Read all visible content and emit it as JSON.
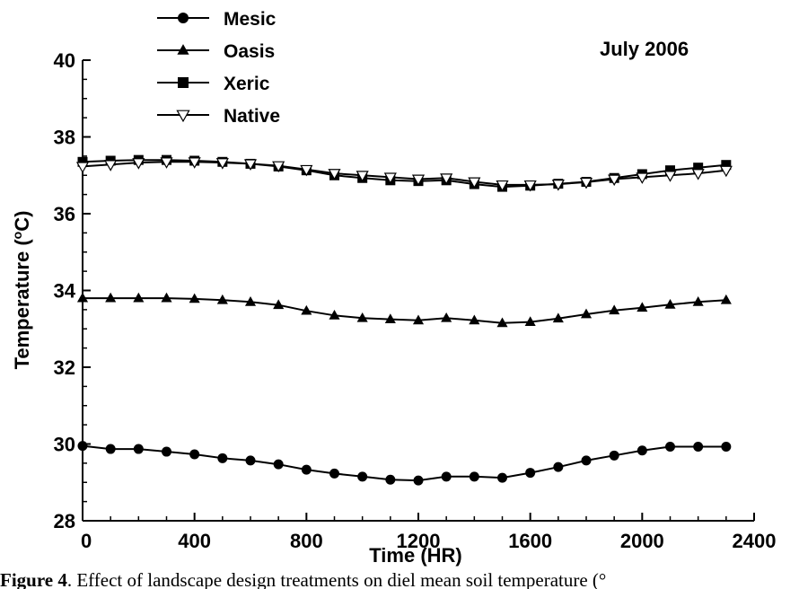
{
  "chart_data": {
    "type": "line",
    "annotation": "July 2006",
    "xlabel": "Time (HR)",
    "ylabel": "Temperature (°C)",
    "ylabel_parts": {
      "pre": "Temperature (",
      "sup": "o",
      "post": "C)"
    },
    "xlim": [
      0,
      2400
    ],
    "ylim": [
      28,
      40
    ],
    "xticks": [
      0,
      400,
      800,
      1200,
      1600,
      2000,
      2400
    ],
    "yticks": [
      28,
      30,
      32,
      34,
      36,
      38,
      40
    ],
    "grid": false,
    "legend_position": "top-left",
    "x": [
      0,
      100,
      200,
      300,
      400,
      500,
      600,
      700,
      800,
      900,
      1000,
      1100,
      1200,
      1300,
      1400,
      1500,
      1600,
      1700,
      1800,
      1900,
      2000,
      2100,
      2200,
      2300
    ],
    "series": [
      {
        "name": "Mesic",
        "marker": "circle",
        "values": [
          29.95,
          29.87,
          29.87,
          29.8,
          29.73,
          29.63,
          29.57,
          29.47,
          29.33,
          29.23,
          29.15,
          29.07,
          29.05,
          29.15,
          29.15,
          29.12,
          29.25,
          29.4,
          29.57,
          29.7,
          29.83,
          29.93,
          29.93,
          29.93
        ]
      },
      {
        "name": "Oasis",
        "marker": "triangle",
        "values": [
          33.8,
          33.8,
          33.8,
          33.8,
          33.78,
          33.75,
          33.7,
          33.62,
          33.47,
          33.35,
          33.28,
          33.25,
          33.22,
          33.28,
          33.22,
          33.15,
          33.18,
          33.27,
          33.38,
          33.48,
          33.55,
          33.63,
          33.7,
          33.75
        ]
      },
      {
        "name": "Xeric",
        "marker": "square",
        "values": [
          37.35,
          37.38,
          37.4,
          37.4,
          37.38,
          37.35,
          37.3,
          37.23,
          37.13,
          37.0,
          36.93,
          36.87,
          36.85,
          36.87,
          36.77,
          36.7,
          36.73,
          36.78,
          36.83,
          36.93,
          37.03,
          37.13,
          37.2,
          37.27
        ]
      },
      {
        "name": "Native",
        "marker": "triangle-down",
        "values": [
          37.23,
          37.28,
          37.33,
          37.35,
          37.35,
          37.33,
          37.3,
          37.25,
          37.15,
          37.05,
          37.0,
          36.95,
          36.9,
          36.93,
          36.83,
          36.75,
          36.75,
          36.77,
          36.82,
          36.9,
          36.95,
          37.0,
          37.05,
          37.13
        ]
      }
    ]
  },
  "caption": {
    "label": "Figure 4",
    "text": ". Effect of landscape design treatments on diel mean soil temperature (°"
  }
}
